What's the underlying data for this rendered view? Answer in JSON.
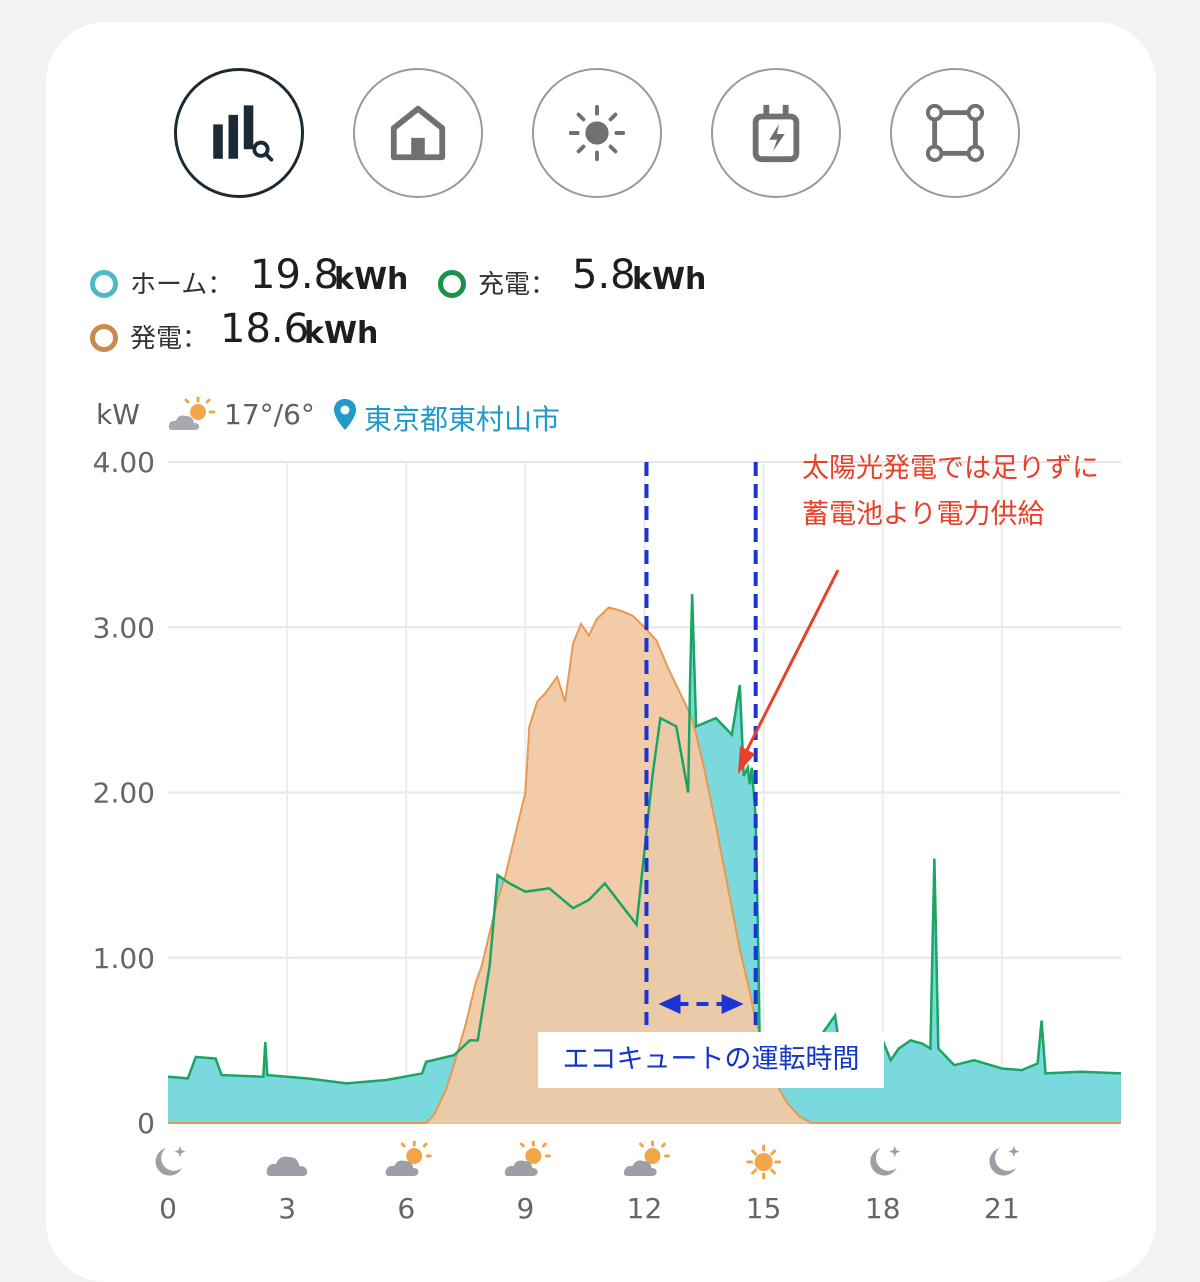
{
  "nav": {
    "buttons": [
      {
        "icon": "bar-chart-search-icon",
        "active": true
      },
      {
        "icon": "home-icon",
        "active": false
      },
      {
        "icon": "sun-icon",
        "active": false
      },
      {
        "icon": "battery-charging-icon",
        "active": false
      },
      {
        "icon": "nodes-square-icon",
        "active": false
      }
    ]
  },
  "summary": {
    "home": {
      "label": "ホーム：",
      "value": "19.8",
      "unit": "kWh",
      "color": "#4fb8c4"
    },
    "charge": {
      "label": "充電：",
      "value": "5.8",
      "unit": "kWh",
      "color": "#19924a"
    },
    "generation": {
      "label": "発電：",
      "value": "18.6",
      "unit": "kWh",
      "color": "#c98a4e"
    }
  },
  "info": {
    "unit": "kW",
    "weather_icon": "partly-sunny-icon",
    "temperature": "17°/6°",
    "location_icon": "location-pin-icon",
    "location": "東京都東村山市"
  },
  "annotations": {
    "battery_note_line1": "太陽光発電では足りずに",
    "battery_note_line2": "蓄電池より電力供給",
    "ecocute_label": "エコキュートの運転時間"
  },
  "colors": {
    "home_fill": "#7ad9dc",
    "home_line": "#1aa564",
    "gen_fill": "#f1c9a3",
    "gen_line": "#e89850",
    "dashed": "#1a35d4",
    "arrow": "#e8402a"
  },
  "chart_data": {
    "type": "area",
    "x_unit": "hour",
    "xlim": [
      0,
      24
    ],
    "ylim": [
      0,
      4
    ],
    "yticks": [
      0,
      1,
      2,
      3,
      4
    ],
    "ytick_labels": [
      "0",
      "1.00",
      "2.00",
      "3.00",
      "4.00"
    ],
    "xticks": [
      0,
      3,
      6,
      9,
      12,
      15,
      18,
      21
    ],
    "xtick_labels": [
      "0",
      "3",
      "6",
      "9",
      "12",
      "15",
      "18",
      "21"
    ],
    "hour_weather_icons": [
      "moon-star-icon",
      "cloud-icon",
      "partly-sunny-icon",
      "partly-sunny-icon",
      "partly-sunny-icon",
      "sun-icon",
      "moon-star-icon",
      "moon-star-icon"
    ],
    "grid": true,
    "series": [
      {
        "name": "ホーム",
        "points": [
          [
            0,
            0.28
          ],
          [
            0.5,
            0.27
          ],
          [
            0.7,
            0.4
          ],
          [
            1.2,
            0.39
          ],
          [
            1.35,
            0.29
          ],
          [
            2.4,
            0.28
          ],
          [
            2.45,
            0.49
          ],
          [
            2.5,
            0.29
          ],
          [
            3.5,
            0.27
          ],
          [
            4.5,
            0.24
          ],
          [
            5.5,
            0.26
          ],
          [
            6.4,
            0.3
          ],
          [
            6.5,
            0.37
          ],
          [
            7.2,
            0.41
          ],
          [
            7.6,
            0.5
          ],
          [
            7.8,
            0.5
          ],
          [
            8.1,
            0.95
          ],
          [
            8.3,
            1.5
          ],
          [
            8.6,
            1.45
          ],
          [
            9,
            1.4
          ],
          [
            9.6,
            1.42
          ],
          [
            10.2,
            1.3
          ],
          [
            10.6,
            1.35
          ],
          [
            11,
            1.45
          ],
          [
            11.8,
            1.2
          ],
          [
            12.2,
            2.1
          ],
          [
            12.4,
            2.45
          ],
          [
            12.8,
            2.4
          ],
          [
            13.1,
            2.0
          ],
          [
            13.15,
            2.7
          ],
          [
            13.2,
            3.2
          ],
          [
            13.3,
            2.4
          ],
          [
            13.8,
            2.45
          ],
          [
            14.2,
            2.35
          ],
          [
            14.4,
            2.65
          ],
          [
            14.5,
            2.1
          ],
          [
            14.6,
            2.15
          ],
          [
            14.65,
            2.05
          ],
          [
            14.7,
            2.15
          ],
          [
            14.8,
            1.85
          ],
          [
            14.87,
            1.0
          ],
          [
            14.9,
            0.5
          ],
          [
            15.5,
            0.45
          ],
          [
            16,
            0.38
          ],
          [
            16.8,
            0.65
          ],
          [
            16.9,
            0.48
          ],
          [
            17.4,
            0.4
          ],
          [
            17.5,
            0.46
          ],
          [
            18,
            0.5
          ],
          [
            18.2,
            0.38
          ],
          [
            18.4,
            0.45
          ],
          [
            18.7,
            0.5
          ],
          [
            19,
            0.48
          ],
          [
            19.2,
            0.45
          ],
          [
            19.3,
            1.6
          ],
          [
            19.4,
            0.45
          ],
          [
            19.8,
            0.35
          ],
          [
            20.3,
            0.38
          ],
          [
            21,
            0.33
          ],
          [
            21.5,
            0.32
          ],
          [
            21.9,
            0.36
          ],
          [
            22,
            0.62
          ],
          [
            22.1,
            0.3
          ],
          [
            23,
            0.31
          ],
          [
            24,
            0.3
          ]
        ]
      },
      {
        "name": "発電",
        "points": [
          [
            0,
            0
          ],
          [
            6.5,
            0
          ],
          [
            6.7,
            0.05
          ],
          [
            7.0,
            0.2
          ],
          [
            7.2,
            0.35
          ],
          [
            7.5,
            0.6
          ],
          [
            7.75,
            0.85
          ],
          [
            7.9,
            0.95
          ],
          [
            8.05,
            1.1
          ],
          [
            8.3,
            1.35
          ],
          [
            8.5,
            1.5
          ],
          [
            8.8,
            1.8
          ],
          [
            9.0,
            2.0
          ],
          [
            9.1,
            2.4
          ],
          [
            9.3,
            2.55
          ],
          [
            9.5,
            2.6
          ],
          [
            9.8,
            2.7
          ],
          [
            10.0,
            2.55
          ],
          [
            10.2,
            2.9
          ],
          [
            10.4,
            3.02
          ],
          [
            10.6,
            2.95
          ],
          [
            10.8,
            3.05
          ],
          [
            11.1,
            3.12
          ],
          [
            11.4,
            3.1
          ],
          [
            11.7,
            3.07
          ],
          [
            12.0,
            3.0
          ],
          [
            12.3,
            2.92
          ],
          [
            12.6,
            2.75
          ],
          [
            12.9,
            2.6
          ],
          [
            13.2,
            2.45
          ],
          [
            13.5,
            2.15
          ],
          [
            13.8,
            1.8
          ],
          [
            14.0,
            1.55
          ],
          [
            14.2,
            1.3
          ],
          [
            14.4,
            1.05
          ],
          [
            14.6,
            0.85
          ],
          [
            14.8,
            0.62
          ],
          [
            15.0,
            0.47
          ],
          [
            15.2,
            0.33
          ],
          [
            15.4,
            0.2
          ],
          [
            15.6,
            0.12
          ],
          [
            15.9,
            0.04
          ],
          [
            16.2,
            0
          ],
          [
            24,
            0
          ]
        ]
      }
    ]
  }
}
